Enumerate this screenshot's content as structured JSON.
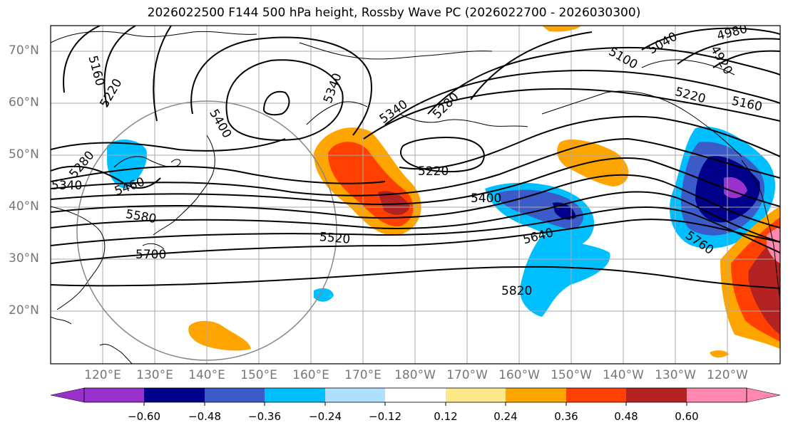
{
  "title": "2026022500 F144 500 hPa height, Rossby Wave PC (2026022700 - 2026030300)",
  "lat_labels": [
    "70°N",
    "60°N",
    "50°N",
    "40°N",
    "30°N",
    "20°N"
  ],
  "lon_labels": [
    "120°E",
    "130°E",
    "140°E",
    "150°E",
    "160°E",
    "170°E",
    "180°W",
    "170°W",
    "160°W",
    "150°W",
    "140°W",
    "130°W",
    "120°W"
  ],
  "contour_labels": [
    "5160",
    "5220",
    "5400",
    "5460",
    "5340",
    "5280",
    "5220",
    "5100",
    "5040",
    "4980",
    "4920",
    "5220",
    "5160",
    "5400",
    "5520",
    "5640",
    "5580",
    "5700",
    "5760",
    "5820",
    "5340",
    "5280",
    "5340"
  ],
  "colorbar": {
    "ticks": [
      "−0.60",
      "−0.48",
      "−0.36",
      "−0.24",
      "−0.12",
      "0.12",
      "0.24",
      "0.36",
      "0.48",
      "0.60"
    ],
    "colors": [
      "#9932cc",
      "#00008b",
      "#3a5bc8",
      "#00bfff",
      "#b0e0ff",
      "#ffffff",
      "#ffe88a",
      "#ffa500",
      "#ff4000",
      "#b22222",
      "#ff88b0"
    ]
  }
}
